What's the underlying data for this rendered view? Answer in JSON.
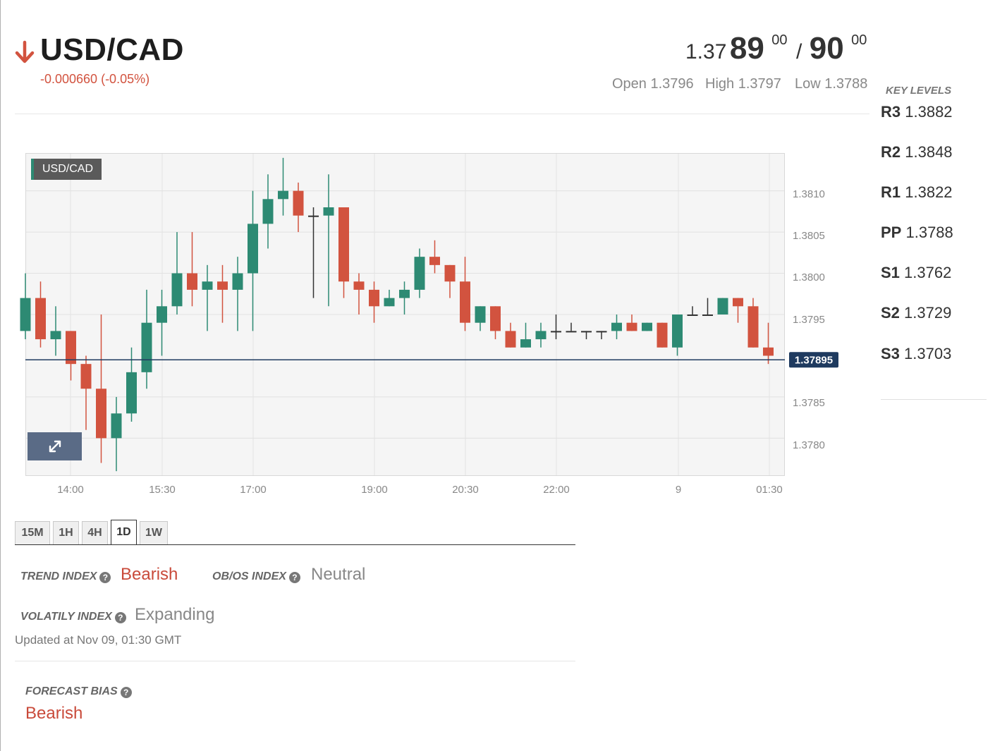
{
  "header": {
    "pair": "USD/CAD",
    "change": "-0.000660 (-0.05%)",
    "price_bid_prefix": "1.37",
    "price_bid_main": "89",
    "price_bid_sup": "00",
    "price_separator": "/",
    "price_ask_main": "90",
    "price_ask_sup": "00",
    "open": "Open 1.3796",
    "high": "High 1.3797",
    "low": "Low 1.3788",
    "down_color": "#d2533f"
  },
  "key_levels": {
    "title": "KEY LEVELS",
    "levels": [
      {
        "name": "R3",
        "value": "1.3882"
      },
      {
        "name": "R2",
        "value": "1.3848"
      },
      {
        "name": "R1",
        "value": "1.3822"
      },
      {
        "name": "PP",
        "value": "1.3788"
      },
      {
        "name": "S1",
        "value": "1.3762"
      },
      {
        "name": "S2",
        "value": "1.3729"
      },
      {
        "name": "S3",
        "value": "1.3703"
      }
    ]
  },
  "chart": {
    "label": "USD/CAD",
    "current_price_label": "1.37895",
    "current_price": 1.37895,
    "y_ticks": [
      "1.3810",
      "1.3805",
      "1.3800",
      "1.3795",
      "1.3785",
      "1.3780"
    ],
    "x_ticks": [
      "14:00",
      "15:30",
      "17:00",
      "19:00",
      "20:30",
      "22:00",
      "9",
      "01:30"
    ],
    "expand_icon": "expand-arrows-icon",
    "up_color": "#2d8a73",
    "down_color": "#d2533f"
  },
  "chart_data": {
    "type": "candlestick",
    "y_range": [
      1.37755,
      1.38145
    ],
    "y_ticks": [
      1.378,
      1.3785,
      1.3795,
      1.38,
      1.3805,
      1.381
    ],
    "candles": [
      {
        "o": 1.3793,
        "h": 1.38,
        "l": 1.3792,
        "c": 1.3797
      },
      {
        "o": 1.3797,
        "h": 1.3799,
        "l": 1.3791,
        "c": 1.3792
      },
      {
        "o": 1.3792,
        "h": 1.3796,
        "l": 1.379,
        "c": 1.3793
      },
      {
        "o": 1.3793,
        "h": 1.3793,
        "l": 1.3787,
        "c": 1.3789
      },
      {
        "o": 1.3789,
        "h": 1.379,
        "l": 1.3781,
        "c": 1.3786
      },
      {
        "o": 1.3786,
        "h": 1.3795,
        "l": 1.3777,
        "c": 1.378
      },
      {
        "o": 1.378,
        "h": 1.3785,
        "l": 1.3776,
        "c": 1.3783
      },
      {
        "o": 1.3783,
        "h": 1.3791,
        "l": 1.3782,
        "c": 1.3788
      },
      {
        "o": 1.3788,
        "h": 1.3798,
        "l": 1.3786,
        "c": 1.3794
      },
      {
        "o": 1.3794,
        "h": 1.3798,
        "l": 1.379,
        "c": 1.3796
      },
      {
        "o": 1.3796,
        "h": 1.3805,
        "l": 1.3795,
        "c": 1.38
      },
      {
        "o": 1.38,
        "h": 1.3805,
        "l": 1.3796,
        "c": 1.3798
      },
      {
        "o": 1.3798,
        "h": 1.3801,
        "l": 1.3793,
        "c": 1.3799
      },
      {
        "o": 1.3799,
        "h": 1.3801,
        "l": 1.3794,
        "c": 1.3798
      },
      {
        "o": 1.3798,
        "h": 1.3802,
        "l": 1.3793,
        "c": 1.38
      },
      {
        "o": 1.38,
        "h": 1.381,
        "l": 1.3793,
        "c": 1.3806
      },
      {
        "o": 1.3806,
        "h": 1.3812,
        "l": 1.3803,
        "c": 1.3809
      },
      {
        "o": 1.3809,
        "h": 1.3814,
        "l": 1.3807,
        "c": 1.381
      },
      {
        "o": 1.381,
        "h": 1.3811,
        "l": 1.3805,
        "c": 1.3807
      },
      {
        "o": 1.3807,
        "h": 1.3808,
        "l": 1.3797,
        "c": 1.3807
      },
      {
        "o": 1.3807,
        "h": 1.3812,
        "l": 1.3796,
        "c": 1.3808
      },
      {
        "o": 1.3808,
        "h": 1.3808,
        "l": 1.3797,
        "c": 1.3799
      },
      {
        "o": 1.3799,
        "h": 1.38,
        "l": 1.3795,
        "c": 1.3798
      },
      {
        "o": 1.3798,
        "h": 1.3799,
        "l": 1.3794,
        "c": 1.3796
      },
      {
        "o": 1.3796,
        "h": 1.3798,
        "l": 1.3796,
        "c": 1.3797
      },
      {
        "o": 1.3797,
        "h": 1.3799,
        "l": 1.3795,
        "c": 1.3798
      },
      {
        "o": 1.3798,
        "h": 1.3803,
        "l": 1.3797,
        "c": 1.3802
      },
      {
        "o": 1.3802,
        "h": 1.3804,
        "l": 1.38,
        "c": 1.3801
      },
      {
        "o": 1.3801,
        "h": 1.3801,
        "l": 1.3797,
        "c": 1.3799
      },
      {
        "o": 1.3799,
        "h": 1.3802,
        "l": 1.3793,
        "c": 1.3794
      },
      {
        "o": 1.3794,
        "h": 1.3796,
        "l": 1.3793,
        "c": 1.3796
      },
      {
        "o": 1.3796,
        "h": 1.3796,
        "l": 1.3792,
        "c": 1.3793
      },
      {
        "o": 1.3793,
        "h": 1.3794,
        "l": 1.3791,
        "c": 1.3791
      },
      {
        "o": 1.3791,
        "h": 1.3794,
        "l": 1.3791,
        "c": 1.3792
      },
      {
        "o": 1.3792,
        "h": 1.3794,
        "l": 1.3791,
        "c": 1.3793
      },
      {
        "o": 1.3793,
        "h": 1.3795,
        "l": 1.3792,
        "c": 1.3793
      },
      {
        "o": 1.3793,
        "h": 1.3794,
        "l": 1.3793,
        "c": 1.3793
      },
      {
        "o": 1.3793,
        "h": 1.3793,
        "l": 1.3792,
        "c": 1.3793
      },
      {
        "o": 1.3793,
        "h": 1.3793,
        "l": 1.3792,
        "c": 1.3793
      },
      {
        "o": 1.3793,
        "h": 1.3795,
        "l": 1.3792,
        "c": 1.3794
      },
      {
        "o": 1.3794,
        "h": 1.3795,
        "l": 1.3793,
        "c": 1.3793
      },
      {
        "o": 1.3793,
        "h": 1.3794,
        "l": 1.3793,
        "c": 1.3794
      },
      {
        "o": 1.3794,
        "h": 1.3794,
        "l": 1.3791,
        "c": 1.3791
      },
      {
        "o": 1.3791,
        "h": 1.3795,
        "l": 1.379,
        "c": 1.3795
      },
      {
        "o": 1.3795,
        "h": 1.3796,
        "l": 1.3795,
        "c": 1.3795
      },
      {
        "o": 1.3795,
        "h": 1.3797,
        "l": 1.3795,
        "c": 1.3795
      },
      {
        "o": 1.3795,
        "h": 1.3797,
        "l": 1.3795,
        "c": 1.3797
      },
      {
        "o": 1.3797,
        "h": 1.3797,
        "l": 1.3794,
        "c": 1.3796
      },
      {
        "o": 1.3796,
        "h": 1.3797,
        "l": 1.3791,
        "c": 1.3791
      },
      {
        "o": 1.3791,
        "h": 1.3794,
        "l": 1.3789,
        "c": 1.379
      }
    ]
  },
  "timeframes": [
    "15M",
    "1H",
    "4H",
    "1D",
    "1W"
  ],
  "active_timeframe": "1D",
  "indices": {
    "trend_label": "TREND INDEX",
    "trend_value": "Bearish",
    "obos_label": "OB/OS INDEX",
    "obos_value": "Neutral",
    "volatility_label": "VOLATILY INDEX",
    "volatility_value": "Expanding",
    "help_icon": "question-icon"
  },
  "updated": "Updated at Nov 09, 01:30 GMT",
  "forecast": {
    "label": "FORECAST BIAS",
    "value": "Bearish"
  }
}
